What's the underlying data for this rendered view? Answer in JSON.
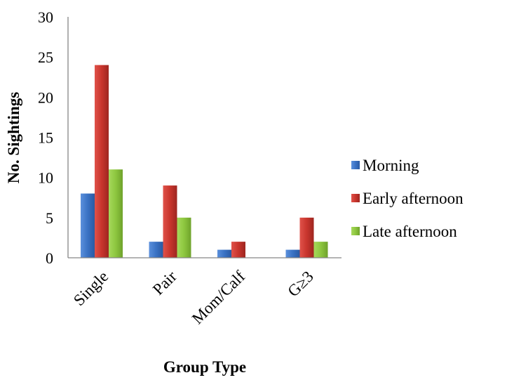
{
  "chart_data": {
    "type": "bar",
    "categories": [
      "Single",
      "Pair",
      "Mom/Calf",
      "G≥3"
    ],
    "series": [
      {
        "name": "Morning",
        "values": [
          8,
          2,
          1,
          1
        ],
        "color": "#3a72c4"
      },
      {
        "name": "Early afternoon",
        "values": [
          24,
          9,
          2,
          5
        ],
        "color": "#c8352d"
      },
      {
        "name": "Late afternoon",
        "values": [
          11,
          5,
          0,
          2
        ],
        "color": "#8dc63f"
      }
    ],
    "xlabel": "Group Type",
    "ylabel": "No. Sightings",
    "ylim": [
      0,
      30
    ],
    "yticks": [
      0,
      5,
      10,
      15,
      20,
      25,
      30
    ],
    "grid": false,
    "legend_position": "right"
  }
}
